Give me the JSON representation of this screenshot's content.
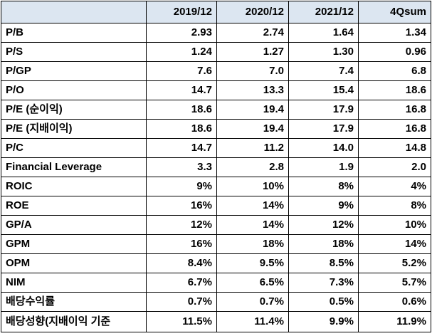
{
  "table": {
    "columns": [
      "",
      "2019/12",
      "2020/12",
      "2021/12",
      "4Qsum"
    ],
    "rows": [
      {
        "label": "P/B",
        "values": [
          "2.93",
          "2.74",
          "1.64",
          "1.34"
        ]
      },
      {
        "label": "P/S",
        "values": [
          "1.24",
          "1.27",
          "1.30",
          "0.96"
        ]
      },
      {
        "label": "P/GP",
        "values": [
          "7.6",
          "7.0",
          "7.4",
          "6.8"
        ]
      },
      {
        "label": "P/O",
        "values": [
          "14.7",
          "13.3",
          "15.4",
          "18.6"
        ]
      },
      {
        "label": "P/E (순이익)",
        "values": [
          "18.6",
          "19.4",
          "17.9",
          "16.8"
        ]
      },
      {
        "label": "P/E (지배이익)",
        "values": [
          "18.6",
          "19.4",
          "17.9",
          "16.8"
        ]
      },
      {
        "label": "P/C",
        "values": [
          "14.7",
          "11.2",
          "14.0",
          "14.8"
        ]
      },
      {
        "label": "Financial Leverage",
        "values": [
          "3.3",
          "2.8",
          "1.9",
          "2.0"
        ]
      },
      {
        "label": "ROIC",
        "values": [
          "9%",
          "10%",
          "8%",
          "4%"
        ]
      },
      {
        "label": "ROE",
        "values": [
          "16%",
          "14%",
          "9%",
          "8%"
        ]
      },
      {
        "label": "GP/A",
        "values": [
          "12%",
          "14%",
          "12%",
          "10%"
        ]
      },
      {
        "label": "GPM",
        "values": [
          "16%",
          "18%",
          "18%",
          "14%"
        ]
      },
      {
        "label": "OPM",
        "values": [
          "8.4%",
          "9.5%",
          "8.5%",
          "5.2%"
        ]
      },
      {
        "label": "NIM",
        "values": [
          "6.7%",
          "6.5%",
          "7.3%",
          "5.7%"
        ]
      },
      {
        "label": "배당수익률",
        "values": [
          "0.7%",
          "0.7%",
          "0.5%",
          "0.6%"
        ]
      },
      {
        "label": "배당성향(지배이익 기준",
        "values": [
          "11.5%",
          "11.4%",
          "9.9%",
          "11.9%"
        ]
      }
    ]
  }
}
